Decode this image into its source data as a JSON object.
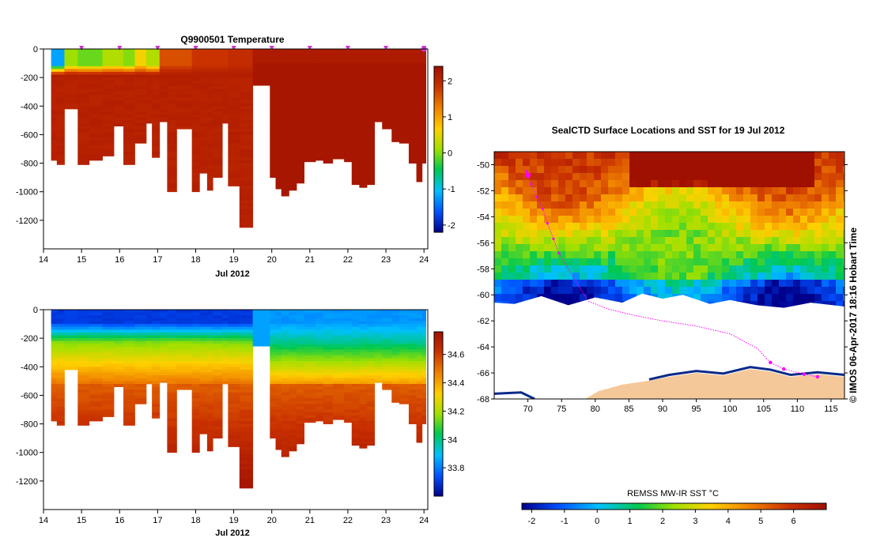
{
  "chart_data": [
    {
      "type": "heatmap",
      "title": "Q9900501  Temperature",
      "xlabel": "Jul 2012",
      "xticks": [
        "14",
        "15",
        "16",
        "17",
        "18",
        "19",
        "20",
        "21",
        "22",
        "23",
        "24"
      ],
      "xlim": [
        14,
        24.1
      ],
      "yticks": [
        "0",
        "-200",
        "-400",
        "-600",
        "-800",
        "-1000",
        "-1200"
      ],
      "ylim": [
        -1400,
        0
      ],
      "profile_marker_days": [
        15,
        16,
        17,
        18,
        19,
        20,
        21,
        22,
        23,
        24
      ],
      "profile_marker_color": "#cc33cc",
      "colorbar": {
        "ticks": [
          "2",
          "1",
          "0",
          "-1",
          "-2"
        ],
        "range": [
          -2.2,
          2.4
        ],
        "colors": [
          "#00008b",
          "#0050ff",
          "#00c0ff",
          "#00c850",
          "#a0e000",
          "#ffd000",
          "#f08000",
          "#c83000",
          "#a01000"
        ]
      },
      "surface_layer": [
        {
          "x0": 14.2,
          "x1": 14.5,
          "v": -1.2
        },
        {
          "x0": 14.5,
          "x1": 15.0,
          "v": 0.1
        },
        {
          "x0": 15.0,
          "x1": 15.5,
          "v": -0.1
        },
        {
          "x0": 15.5,
          "x1": 16.0,
          "v": 0.2
        },
        {
          "x0": 16.0,
          "x1": 16.5,
          "v": 0.0
        },
        {
          "x0": 16.5,
          "x1": 16.7,
          "v": 0.6
        },
        {
          "x0": 16.7,
          "x1": 17.0,
          "v": 0.2
        },
        {
          "x0": 17.0,
          "x1": 18.0,
          "v": 1.6
        },
        {
          "x0": 18.0,
          "x1": 19.0,
          "v": 1.8
        },
        {
          "x0": 19.0,
          "x1": 19.5,
          "v": 1.9
        },
        {
          "x0": 19.5,
          "x1": 24.05,
          "v": 2.2
        }
      ],
      "deep_value": 2.15,
      "profile_depths": [
        {
          "x0": 14.2,
          "x1": 14.35,
          "d": -780
        },
        {
          "x0": 14.35,
          "x1": 14.55,
          "d": -810
        },
        {
          "x0": 14.55,
          "x1": 14.9,
          "d": -420
        },
        {
          "x0": 14.9,
          "x1": 15.2,
          "d": -810
        },
        {
          "x0": 15.2,
          "x1": 15.55,
          "d": -780
        },
        {
          "x0": 15.55,
          "x1": 15.85,
          "d": -750
        },
        {
          "x0": 15.85,
          "x1": 16.1,
          "d": -540
        },
        {
          "x0": 16.1,
          "x1": 16.4,
          "d": -810
        },
        {
          "x0": 16.4,
          "x1": 16.7,
          "d": -660
        },
        {
          "x0": 16.7,
          "x1": 16.85,
          "d": -520
        },
        {
          "x0": 16.85,
          "x1": 17.05,
          "d": -760
        },
        {
          "x0": 17.05,
          "x1": 17.25,
          "d": -510
        },
        {
          "x0": 17.25,
          "x1": 17.5,
          "d": -1000
        },
        {
          "x0": 17.5,
          "x1": 17.9,
          "d": -560
        },
        {
          "x0": 17.9,
          "x1": 18.1,
          "d": -1000
        },
        {
          "x0": 18.1,
          "x1": 18.3,
          "d": -870
        },
        {
          "x0": 18.3,
          "x1": 18.45,
          "d": -990
        },
        {
          "x0": 18.45,
          "x1": 18.7,
          "d": -900
        },
        {
          "x0": 18.7,
          "x1": 18.85,
          "d": -520
        },
        {
          "x0": 18.85,
          "x1": 19.15,
          "d": -960
        },
        {
          "x0": 19.15,
          "x1": 19.5,
          "d": -1250
        },
        {
          "x0": 19.5,
          "x1": 19.95,
          "d": -255
        },
        {
          "x0": 19.95,
          "x1": 20.1,
          "d": -900
        },
        {
          "x0": 20.1,
          "x1": 20.25,
          "d": -980
        },
        {
          "x0": 20.25,
          "x1": 20.45,
          "d": -1030
        },
        {
          "x0": 20.45,
          "x1": 20.65,
          "d": -990
        },
        {
          "x0": 20.65,
          "x1": 20.85,
          "d": -940
        },
        {
          "x0": 20.85,
          "x1": 21.15,
          "d": -790
        },
        {
          "x0": 21.15,
          "x1": 21.35,
          "d": -780
        },
        {
          "x0": 21.35,
          "x1": 21.6,
          "d": -800
        },
        {
          "x0": 21.6,
          "x1": 21.9,
          "d": -770
        },
        {
          "x0": 21.9,
          "x1": 22.1,
          "d": -790
        },
        {
          "x0": 22.1,
          "x1": 22.3,
          "d": -950
        },
        {
          "x0": 22.3,
          "x1": 22.5,
          "d": -970
        },
        {
          "x0": 22.5,
          "x1": 22.7,
          "d": -950
        },
        {
          "x0": 22.7,
          "x1": 22.9,
          "d": -510
        },
        {
          "x0": 22.9,
          "x1": 23.15,
          "d": -560
        },
        {
          "x0": 23.15,
          "x1": 23.35,
          "d": -650
        },
        {
          "x0": 23.35,
          "x1": 23.6,
          "d": -660
        },
        {
          "x0": 23.6,
          "x1": 23.8,
          "d": -800
        },
        {
          "x0": 23.8,
          "x1": 23.95,
          "d": -930
        },
        {
          "x0": 23.95,
          "x1": 24.05,
          "d": -800
        }
      ]
    },
    {
      "type": "heatmap",
      "xlabel": "Jul 2012",
      "xticks": [
        "14",
        "15",
        "16",
        "17",
        "18",
        "19",
        "20",
        "21",
        "22",
        "23",
        "24"
      ],
      "xlim": [
        14,
        24.1
      ],
      "yticks": [
        "0",
        "-200",
        "-400",
        "-600",
        "-800",
        "-1000",
        "-1200"
      ],
      "ylim": [
        -1400,
        0
      ],
      "colorbar": {
        "ticks": [
          "34.6",
          "34.4",
          "34.2",
          "34",
          "33.8"
        ],
        "range": [
          33.6,
          34.76
        ],
        "colors": [
          "#00008b",
          "#0050ff",
          "#00c0ff",
          "#00c850",
          "#a0e000",
          "#ffd000",
          "#f08000",
          "#c83000",
          "#a01000"
        ]
      },
      "surface_value": 33.72,
      "profile_depths": "same as temperature panel"
    },
    {
      "type": "heatmap",
      "title": "SealCTD Surface Locations and SST for 19 Jul 2012",
      "xticks": [
        "70",
        "75",
        "80",
        "85",
        "90",
        "95",
        "100",
        "105",
        "110",
        "115"
      ],
      "xlim": [
        65,
        117
      ],
      "yticks": [
        "-50",
        "-52",
        "-54",
        "-56",
        "-58",
        "-60",
        "-62",
        "-64",
        "-66",
        "-68"
      ],
      "ylim": [
        -68,
        -49
      ],
      "colorbar": {
        "label": "REMSS MW-IR SST °C",
        "ticks": [
          "-2",
          "-1",
          "0",
          "1",
          "2",
          "3",
          "4",
          "5",
          "6"
        ],
        "range": [
          -2.3,
          7.0
        ],
        "colors": [
          "#00008b",
          "#0050ff",
          "#00c0ff",
          "#00c850",
          "#a0e000",
          "#ffd000",
          "#f08000",
          "#c83000",
          "#a01000"
        ]
      },
      "side_label": "© IMOS 06-Apr-2017 18:16 Hobart Time",
      "land_color": "#f5c89a",
      "track_color": "#ff00ff",
      "track": [
        [
          69.8,
          -50.5
        ],
        [
          70.5,
          -51.5
        ],
        [
          71.3,
          -52.5
        ],
        [
          72.2,
          -53.4
        ],
        [
          72.9,
          -54.5
        ],
        [
          73.8,
          -55.7
        ],
        [
          74.6,
          -56.8
        ],
        [
          76,
          -58
        ],
        [
          77.5,
          -59.3
        ],
        [
          79,
          -60.5
        ],
        [
          82,
          -61.1
        ],
        [
          86,
          -61.6
        ],
        [
          90,
          -62
        ],
        [
          95,
          -62.4
        ],
        [
          100,
          -63
        ],
        [
          104,
          -64.1
        ],
        [
          106,
          -65.2
        ],
        [
          108,
          -65.7
        ],
        [
          111,
          -66.1
        ],
        [
          113,
          -66.3
        ]
      ],
      "track_start": [
        70,
        -50.8
      ]
    }
  ]
}
